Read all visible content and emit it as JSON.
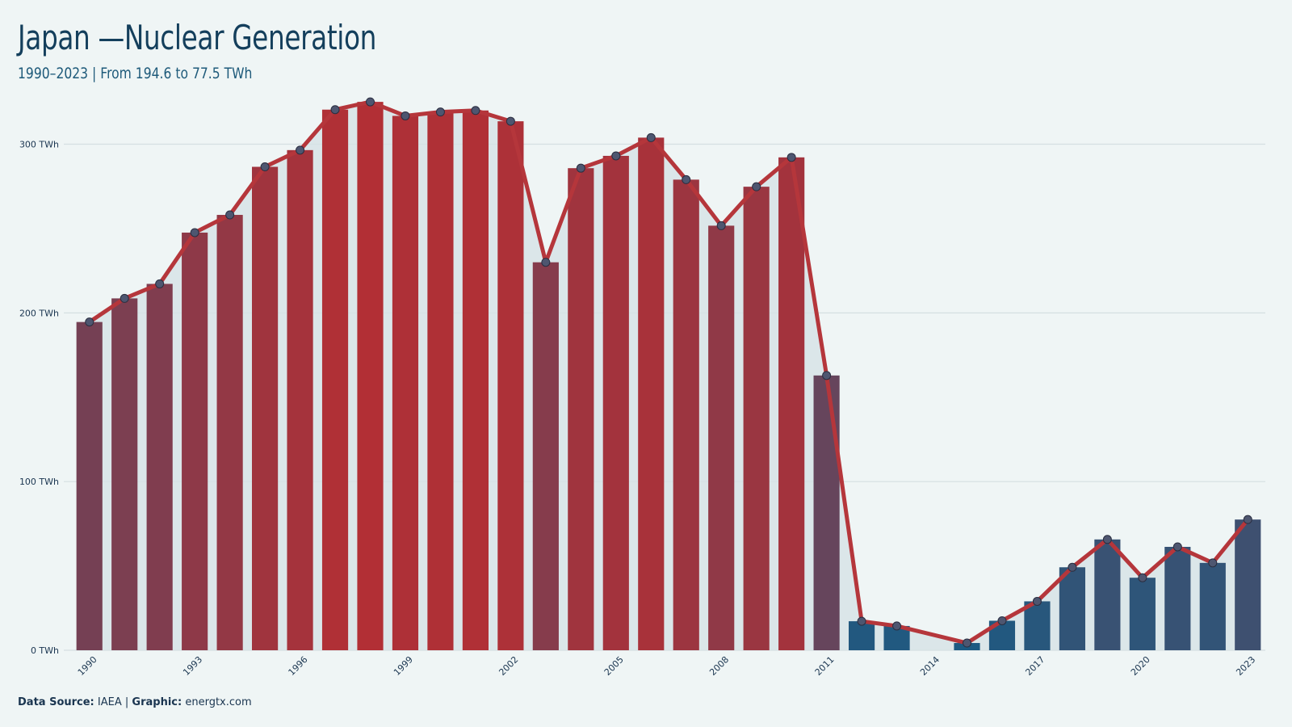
{
  "title": "Japan —Nuclear Generation",
  "subtitle": "1990–2023 | From 194.6 to 77.5 TWh",
  "footer": {
    "source_label": "Data Source:",
    "source_value": "IAEA",
    "separator": "|",
    "graphic_label": "Graphic:",
    "graphic_value": "energtx.com"
  },
  "colors": {
    "background": "#eff5f5",
    "line": "#b5363b",
    "area_fill": "#d6e2e6",
    "gridline": "#d5dfe2",
    "high_bar": "#b22f35",
    "low_bar": "#1c5a82",
    "marker_fill": "#4e5670",
    "axis_text": "#1a3550"
  },
  "chart_data": {
    "type": "bar",
    "overlay": "line",
    "categories": [
      "1990",
      "1991",
      "1992",
      "1993",
      "1994",
      "1995",
      "1996",
      "1997",
      "1998",
      "1999",
      "2000",
      "2001",
      "2002",
      "2003",
      "2004",
      "2005",
      "2006",
      "2007",
      "2008",
      "2009",
      "2010",
      "2011",
      "2012",
      "2013",
      "2014",
      "2015",
      "2016",
      "2017",
      "2018",
      "2019",
      "2020",
      "2021",
      "2022",
      "2023"
    ],
    "values": [
      194.6,
      208.6,
      217.2,
      247.6,
      258.1,
      286.6,
      296.5,
      320.5,
      325.1,
      316.8,
      319.1,
      320.0,
      313.6,
      230.0,
      285.8,
      293.1,
      303.9,
      279.0,
      251.7,
      274.8,
      292.2,
      162.9,
      17.2,
      14.4,
      null,
      4.3,
      17.5,
      29.0,
      49.2,
      65.7,
      43.0,
      61.3,
      51.8,
      77.5
    ],
    "x_tick_labels": [
      "1990",
      "1993",
      "1996",
      "1999",
      "2002",
      "2005",
      "2008",
      "2011",
      "2014",
      "2017",
      "2020",
      "2023"
    ],
    "y_ticks": [
      0,
      100,
      200,
      300
    ],
    "y_tick_labels": [
      "0 TWh",
      "100 TWh",
      "200 TWh",
      "300 TWh"
    ],
    "ylim": [
      0,
      340
    ],
    "xlabel": "",
    "ylabel": "",
    "grid": true,
    "legend": "none"
  }
}
